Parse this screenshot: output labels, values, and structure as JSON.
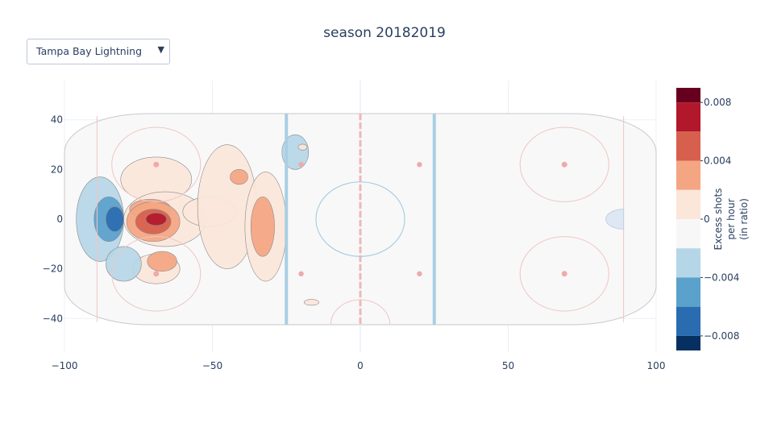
{
  "dropdown": {
    "selected": "Tampa Bay Lightning"
  },
  "chart_data": {
    "type": "heatmap",
    "title": "season 20182019",
    "xlim": [
      -100,
      100
    ],
    "ylim": [
      -42.5,
      42.5
    ],
    "x_ticks": [
      -100,
      -50,
      0,
      50,
      100
    ],
    "x_tick_labels": [
      "−100",
      "−50",
      "0",
      "50",
      "100"
    ],
    "y_ticks": [
      40,
      20,
      0,
      -20,
      -40
    ],
    "y_tick_labels": [
      "40",
      "20",
      "0",
      "−20",
      "−40"
    ],
    "grid": true,
    "colorbar": {
      "title_lines": [
        "Excess shots",
        "per hour",
        "(in ratio)"
      ],
      "range": [
        -0.009,
        0.009
      ],
      "tick_values": [
        0.008,
        0.004,
        0,
        -0.004,
        -0.008
      ],
      "tick_labels": [
        "0.008",
        "0.004",
        "0",
        "−0.004",
        "−0.008"
      ],
      "bands": [
        {
          "from": 0.008,
          "to": 0.009,
          "color": "#67001f"
        },
        {
          "from": 0.006,
          "to": 0.008,
          "color": "#b2182b"
        },
        {
          "from": 0.004,
          "to": 0.006,
          "color": "#d6604d"
        },
        {
          "from": 0.002,
          "to": 0.004,
          "color": "#f4a582"
        },
        {
          "from": 0.0,
          "to": 0.002,
          "color": "#fbe6da"
        },
        {
          "from": -0.002,
          "to": 0.0,
          "color": "#f7f7f7"
        },
        {
          "from": -0.004,
          "to": -0.002,
          "color": "#b5d6e7"
        },
        {
          "from": -0.006,
          "to": -0.004,
          "color": "#5aa1cc"
        },
        {
          "from": -0.008,
          "to": -0.006,
          "color": "#2a6cb0"
        },
        {
          "from": -0.009,
          "to": -0.008,
          "color": "#053061"
        }
      ]
    },
    "regions": [
      {
        "center": [
          -22,
          27
        ],
        "radius": [
          4.5,
          7
        ],
        "value": -0.003
      },
      {
        "center": [
          -69,
          16
        ],
        "radius": [
          12,
          9
        ],
        "value": 0.001
      },
      {
        "center": [
          -66,
          0
        ],
        "radius": [
          14,
          11
        ],
        "value": 0.001
      },
      {
        "center": [
          -51,
          3
        ],
        "radius": [
          9,
          6
        ],
        "value": 0.001
      },
      {
        "center": [
          -45,
          5
        ],
        "radius": [
          10,
          25
        ],
        "value": 0.001
      },
      {
        "center": [
          -32,
          -3
        ],
        "radius": [
          7,
          22
        ],
        "value": 0.001
      },
      {
        "center": [
          -69,
          -20
        ],
        "radius": [
          8,
          6
        ],
        "value": 0.001
      },
      {
        "center": [
          -71,
          4
        ],
        "radius": [
          7,
          4
        ],
        "value": 0.002
      },
      {
        "center": [
          -70,
          -1
        ],
        "radius": [
          9,
          8
        ],
        "value": 0.003
      },
      {
        "center": [
          -41,
          17
        ],
        "radius": [
          3,
          3
        ],
        "value": 0.003
      },
      {
        "center": [
          -33,
          -3
        ],
        "radius": [
          4,
          12
        ],
        "value": 0.003
      },
      {
        "center": [
          -67,
          -17
        ],
        "radius": [
          5,
          4
        ],
        "value": 0.003
      },
      {
        "center": [
          -70,
          -1
        ],
        "radius": [
          6,
          5
        ],
        "value": 0.004
      },
      {
        "center": [
          -69,
          0
        ],
        "radius": [
          3.5,
          2.5
        ],
        "value": 0.006
      },
      {
        "center": [
          -19.5,
          29
        ],
        "radius": [
          1.5,
          1.2
        ],
        "value": 0.001
      },
      {
        "center": [
          -16.5,
          -33.5
        ],
        "radius": [
          2.5,
          1.2
        ],
        "value": 0.001
      },
      {
        "center": [
          -88,
          0
        ],
        "radius": [
          8,
          17
        ],
        "value": -0.003
      },
      {
        "center": [
          -80,
          -18
        ],
        "radius": [
          6,
          7
        ],
        "value": -0.003
      },
      {
        "center": [
          -85,
          0
        ],
        "radius": [
          5,
          9
        ],
        "value": -0.005
      },
      {
        "center": [
          -83,
          0
        ],
        "radius": [
          3,
          5
        ],
        "value": -0.007
      }
    ]
  }
}
